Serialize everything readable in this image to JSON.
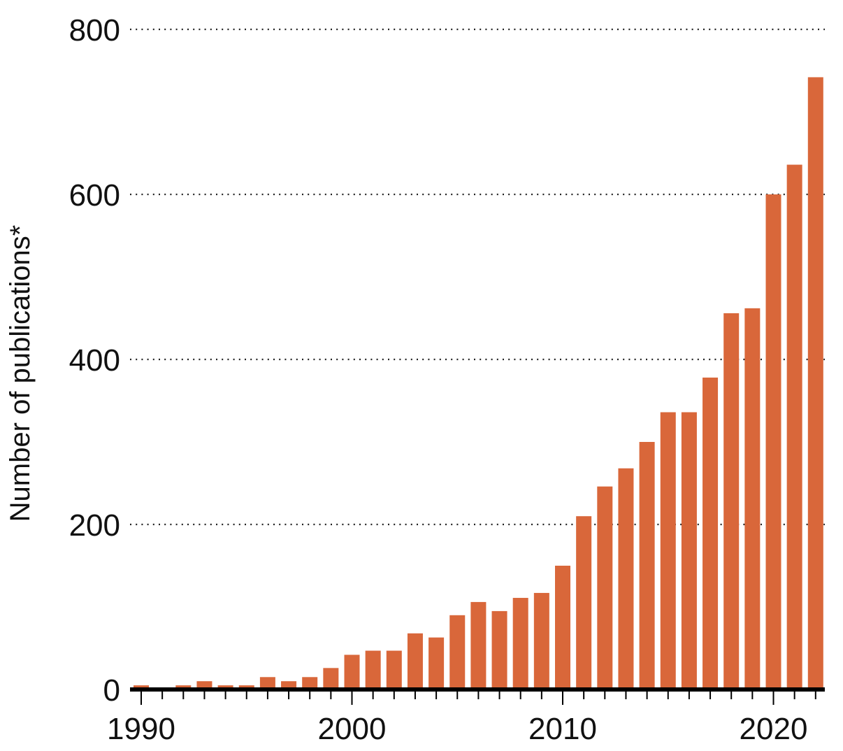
{
  "chart_data": {
    "type": "bar",
    "ylabel": "Number of publications*",
    "xlabel": "",
    "categories": [
      1990,
      1991,
      1992,
      1993,
      1994,
      1995,
      1996,
      1997,
      1998,
      1999,
      2000,
      2001,
      2002,
      2003,
      2004,
      2005,
      2006,
      2007,
      2008,
      2009,
      2010,
      2011,
      2012,
      2013,
      2014,
      2015,
      2016,
      2017,
      2018,
      2019,
      2020,
      2021,
      2022
    ],
    "values": [
      5,
      0,
      5,
      10,
      5,
      5,
      15,
      10,
      15,
      26,
      42,
      47,
      47,
      68,
      63,
      90,
      106,
      95,
      111,
      117,
      150,
      210,
      246,
      268,
      300,
      336,
      336,
      378,
      456,
      462,
      600,
      636,
      742
    ],
    "ylim": [
      0,
      800
    ],
    "yticks": [
      0,
      200,
      400,
      600,
      800
    ],
    "xtick_labels": [
      1990,
      2000,
      2010,
      2020
    ],
    "grid": "horizontal dotted",
    "bar_color": "#D9673A"
  }
}
